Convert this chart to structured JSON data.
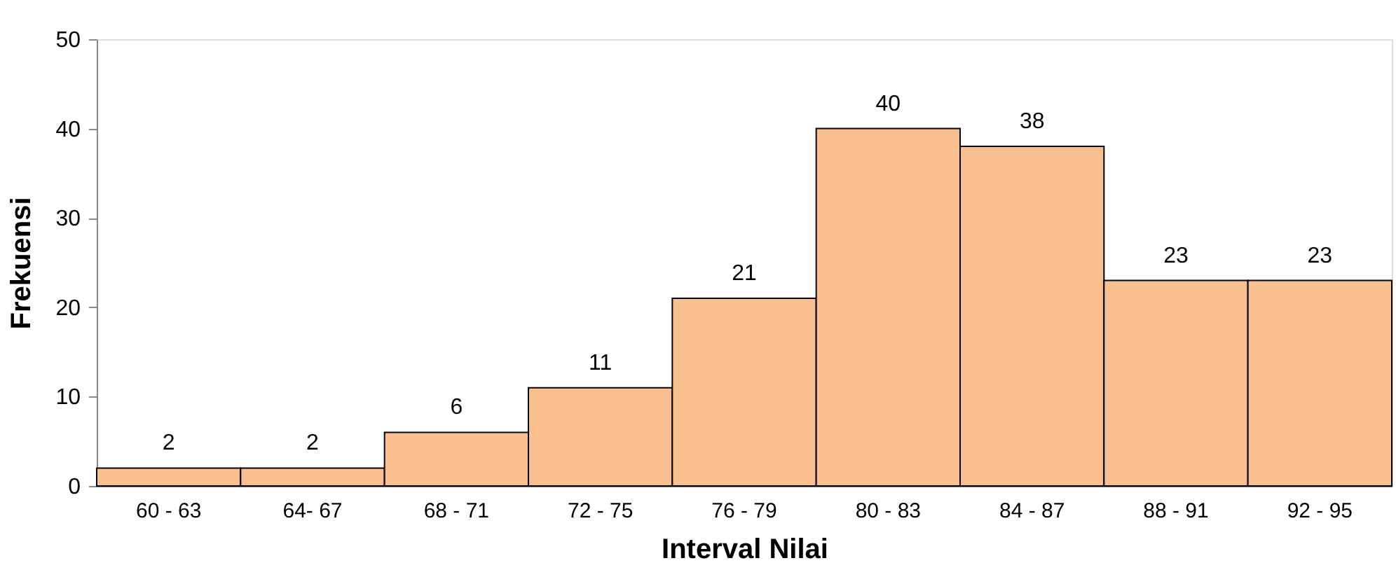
{
  "chart_data": {
    "type": "bar",
    "xlabel": "Interval Nilai",
    "ylabel": "Frekuensi",
    "categories": [
      "60 - 63",
      "64- 67",
      "68 - 71",
      "72 - 75",
      "76 - 79",
      "80 - 83",
      "84 - 87",
      "88 - 91",
      "92 - 95"
    ],
    "values": [
      2,
      2,
      6,
      11,
      21,
      40,
      38,
      23,
      23
    ],
    "color": "#f9bf8f",
    "ylim": [
      0,
      50
    ],
    "yticks": [
      0,
      10,
      20,
      30,
      40,
      50
    ],
    "data_labels": true,
    "grid": false
  }
}
